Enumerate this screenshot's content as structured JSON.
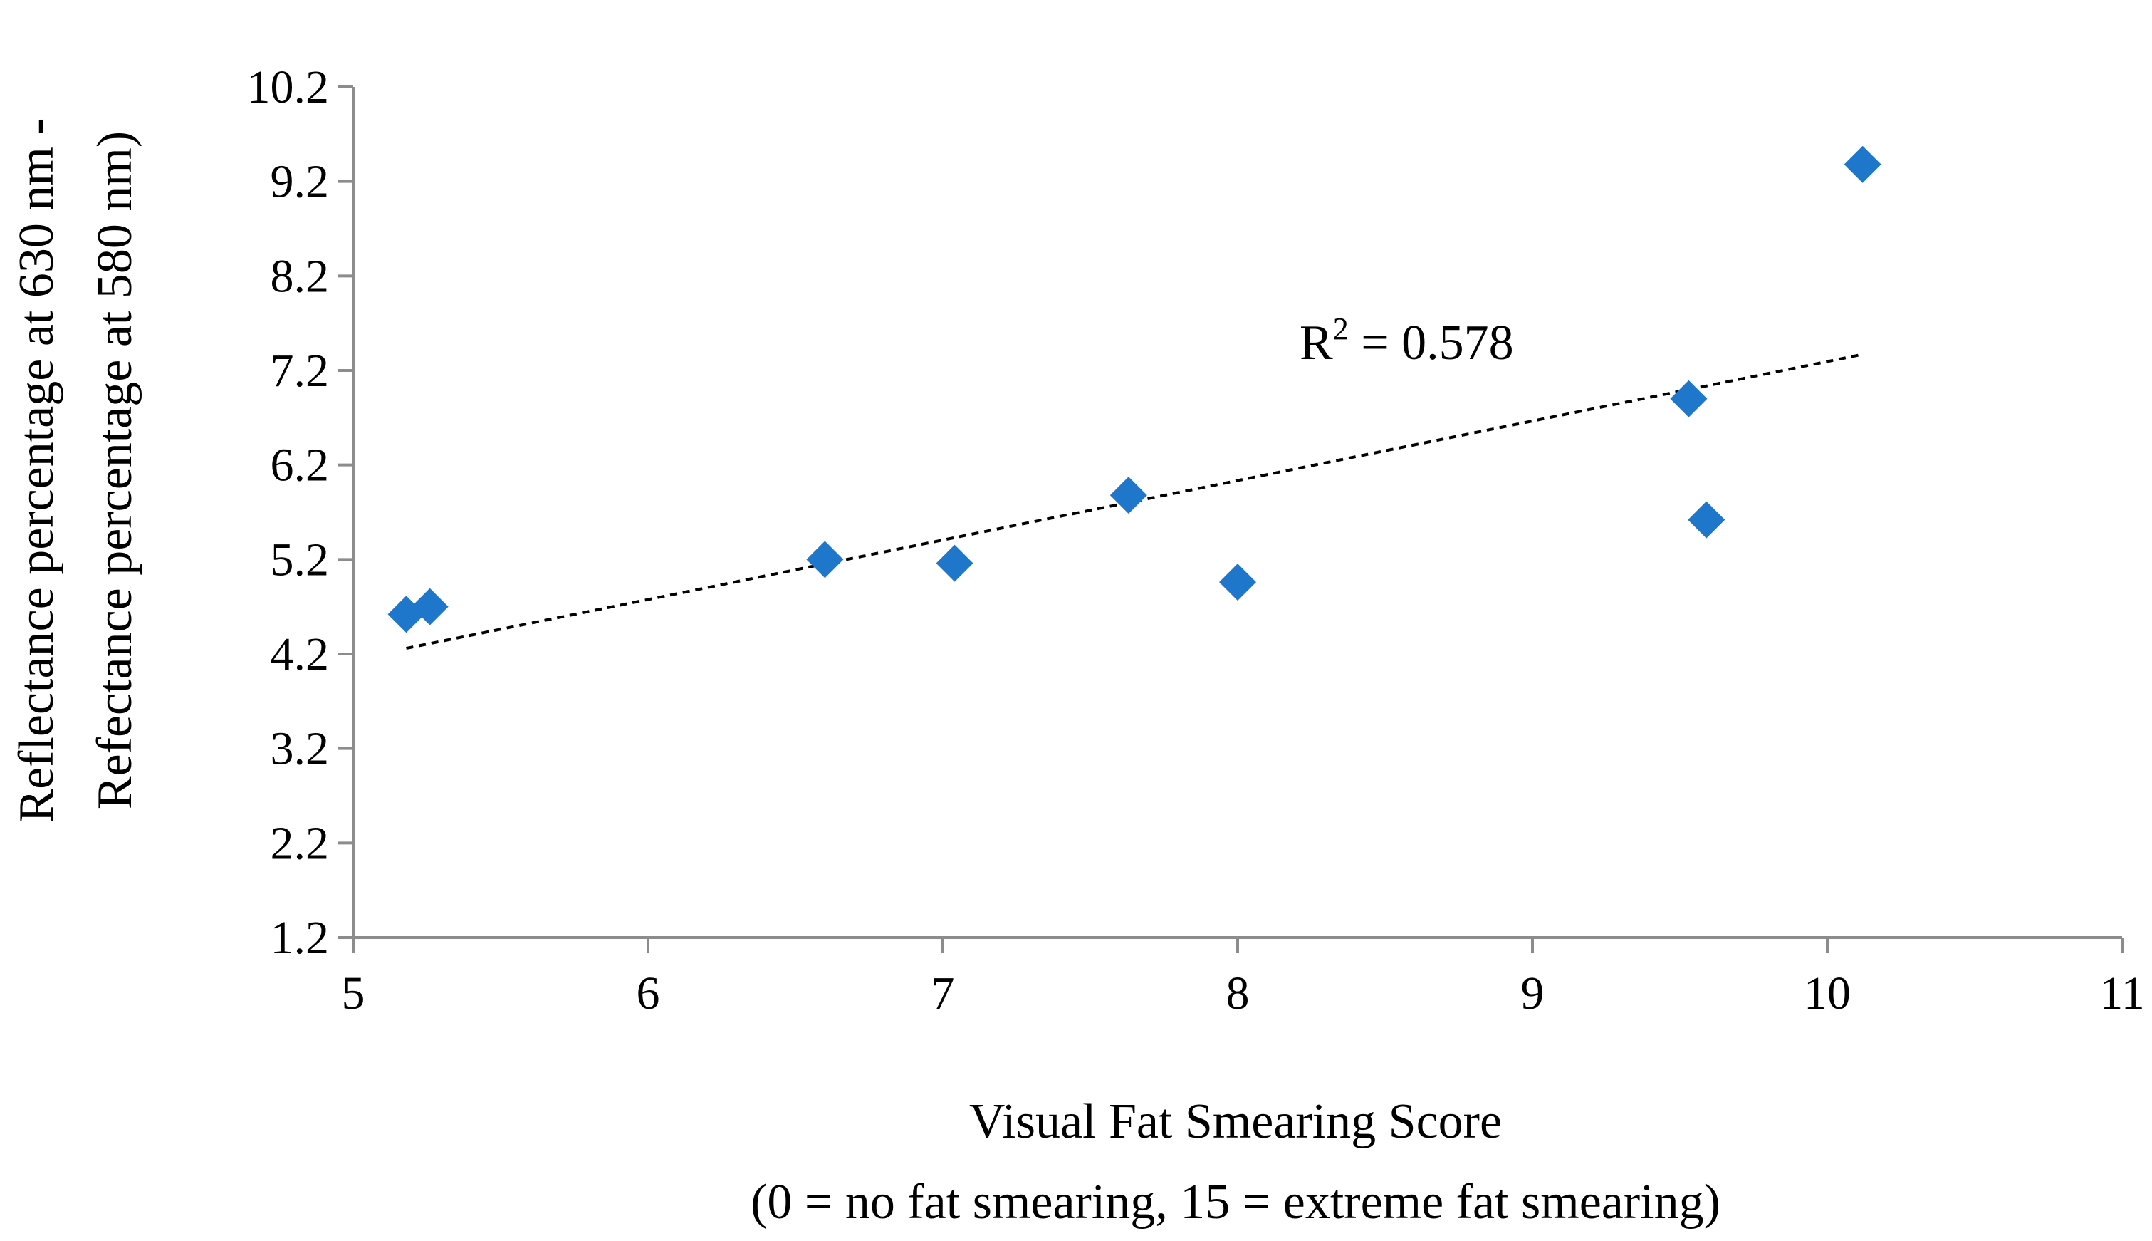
{
  "chart_data": {
    "type": "scatter",
    "xlabel": "Visual Fat Smearing Score",
    "xlabel_sub": "(0 = no fat smearing, 15 = extreme fat smearing)",
    "ylabel_line1": "Reflectance percentage at 630 nm -",
    "ylabel_line2": "Refectance percentage at 580 nm)",
    "xlim": [
      5,
      11
    ],
    "ylim": [
      1.2,
      10.2
    ],
    "x_ticks": [
      "5",
      "6",
      "7",
      "8",
      "9",
      "10",
      "11"
    ],
    "y_ticks": [
      "1.2",
      "2.2",
      "3.2",
      "4.2",
      "5.2",
      "6.2",
      "7.2",
      "8.2",
      "9.2",
      "10.2"
    ],
    "grid": false,
    "legend": "none",
    "series": [
      {
        "marker": "diamond",
        "color": "#1F77CC",
        "points": [
          {
            "x": 5.18,
            "y": 4.62
          },
          {
            "x": 5.26,
            "y": 4.7
          },
          {
            "x": 6.6,
            "y": 5.2
          },
          {
            "x": 7.04,
            "y": 5.16
          },
          {
            "x": 7.63,
            "y": 5.88
          },
          {
            "x": 8.0,
            "y": 4.96
          },
          {
            "x": 9.53,
            "y": 6.9
          },
          {
            "x": 9.59,
            "y": 5.62
          },
          {
            "x": 10.12,
            "y": 9.38
          }
        ]
      }
    ],
    "trendline": {
      "style": "dashed",
      "color": "#000000",
      "x_start": 5.18,
      "y_start": 4.26,
      "x_end": 10.12,
      "y_end": 7.37
    },
    "annotation": {
      "text": "R",
      "superscript": "2",
      "rest": " = 0.578"
    }
  }
}
